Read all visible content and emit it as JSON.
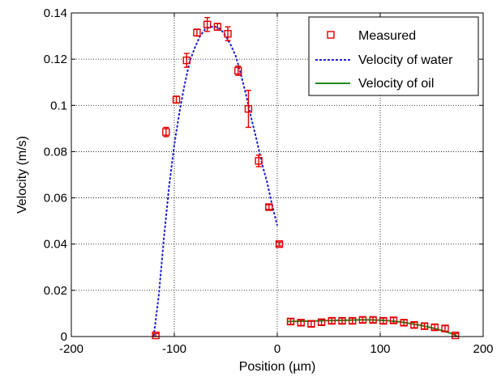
{
  "chart_data": {
    "type": "scatter",
    "xlabel": "Position (µm)",
    "ylabel": "Velocity (m/s)",
    "xlim": [
      -200,
      200
    ],
    "ylim": [
      0,
      0.14
    ],
    "x_ticks": [
      -200,
      -100,
      0,
      100,
      200
    ],
    "y_ticks": [
      0,
      0.02,
      0.04,
      0.06,
      0.08,
      0.1,
      0.12,
      0.14
    ],
    "x_tick_labels": [
      "-200",
      "-100",
      "0",
      "100",
      "200"
    ],
    "y_tick_labels": [
      "0",
      "0.02",
      "0.04",
      "0.06",
      "0.08",
      "0.1",
      "0.12",
      "0.14"
    ],
    "grid": true,
    "legend_position": "top-right",
    "series": [
      {
        "name": "Measured",
        "kind": "markers",
        "color": "#e00000",
        "points": [
          {
            "x": -118,
            "y": 0.0005,
            "err": 0.0008
          },
          {
            "x": -108,
            "y": 0.0885,
            "err": 0.002
          },
          {
            "x": -98,
            "y": 0.1025,
            "err": 0.0015
          },
          {
            "x": -88,
            "y": 0.1195,
            "err": 0.003
          },
          {
            "x": -78,
            "y": 0.1315,
            "err": 0.0015
          },
          {
            "x": -68,
            "y": 0.135,
            "err": 0.003
          },
          {
            "x": -58,
            "y": 0.134,
            "err": 0.0015
          },
          {
            "x": -48,
            "y": 0.131,
            "err": 0.003
          },
          {
            "x": -38,
            "y": 0.115,
            "err": 0.002
          },
          {
            "x": -28,
            "y": 0.0985,
            "err": 0.008
          },
          {
            "x": -18,
            "y": 0.076,
            "err": 0.0025
          },
          {
            "x": -8,
            "y": 0.056,
            "err": 0.001
          },
          {
            "x": 2,
            "y": 0.04,
            "err": 0.0008
          },
          {
            "x": 13,
            "y": 0.0065,
            "err": 0.0012
          },
          {
            "x": 23,
            "y": 0.006,
            "err": 0.0012
          },
          {
            "x": 33,
            "y": 0.0055,
            "err": 0.0012
          },
          {
            "x": 43,
            "y": 0.0062,
            "err": 0.0012
          },
          {
            "x": 53,
            "y": 0.0068,
            "err": 0.0012
          },
          {
            "x": 63,
            "y": 0.0068,
            "err": 0.0012
          },
          {
            "x": 73,
            "y": 0.0068,
            "err": 0.0012
          },
          {
            "x": 83,
            "y": 0.0072,
            "err": 0.0012
          },
          {
            "x": 93,
            "y": 0.0072,
            "err": 0.0012
          },
          {
            "x": 103,
            "y": 0.0068,
            "err": 0.0012
          },
          {
            "x": 113,
            "y": 0.007,
            "err": 0.0012
          },
          {
            "x": 123,
            "y": 0.006,
            "err": 0.0012
          },
          {
            "x": 133,
            "y": 0.005,
            "err": 0.0012
          },
          {
            "x": 143,
            "y": 0.0045,
            "err": 0.0012
          },
          {
            "x": 153,
            "y": 0.004,
            "err": 0.0012
          },
          {
            "x": 163,
            "y": 0.0035,
            "err": 0.0012
          },
          {
            "x": 173,
            "y": 0.0005,
            "err": 0.0008
          }
        ]
      },
      {
        "name": "Velocity of water",
        "kind": "line",
        "style": "dashed",
        "color": "#1f1fd0",
        "x": [
          -120,
          -115,
          -110,
          -105,
          -100,
          -95,
          -90,
          -85,
          -80,
          -75,
          -70,
          -65,
          -60,
          -55,
          -50,
          -45,
          -40,
          -35,
          -30,
          -25,
          -20,
          -15,
          -10,
          -5,
          0
        ],
        "y": [
          0.0,
          0.018,
          0.043,
          0.065,
          0.083,
          0.097,
          0.109,
          0.119,
          0.125,
          0.13,
          0.133,
          0.134,
          0.134,
          0.133,
          0.13,
          0.126,
          0.121,
          0.113,
          0.104,
          0.094,
          0.085,
          0.075,
          0.067,
          0.057,
          0.048
        ]
      },
      {
        "name": "Velocity of oil",
        "kind": "line",
        "style": "solid",
        "color": "#1f8a1f",
        "x": [
          10,
          20,
          30,
          40,
          50,
          60,
          70,
          80,
          90,
          100,
          110,
          120,
          130,
          140,
          150,
          160,
          170,
          175
        ],
        "y": [
          0.0065,
          0.0066,
          0.0067,
          0.0068,
          0.0069,
          0.007,
          0.0071,
          0.0072,
          0.0072,
          0.0071,
          0.0068,
          0.0063,
          0.0056,
          0.0048,
          0.0038,
          0.0026,
          0.0012,
          0.0
        ]
      }
    ]
  }
}
